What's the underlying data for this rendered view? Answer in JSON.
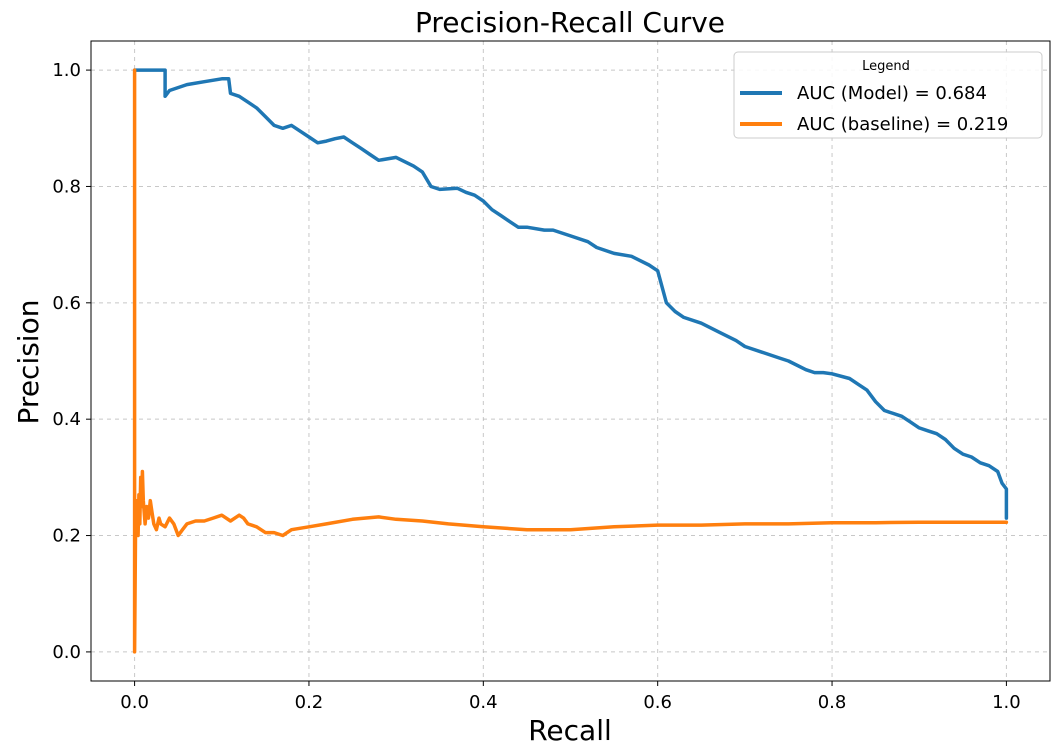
{
  "chart_data": {
    "type": "line",
    "title": "Precision-Recall Curve",
    "xlabel": "Recall",
    "ylabel": "Precision",
    "xlim": [
      -0.05,
      1.05
    ],
    "ylim": [
      -0.05,
      1.05
    ],
    "xticks": [
      0.0,
      0.2,
      0.4,
      0.6,
      0.8,
      1.0
    ],
    "yticks": [
      0.0,
      0.2,
      0.4,
      0.6,
      0.8,
      1.0
    ],
    "xtick_labels": [
      "0.0",
      "0.2",
      "0.4",
      "0.6",
      "0.8",
      "1.0"
    ],
    "ytick_labels": [
      "0.0",
      "0.2",
      "0.4",
      "0.6",
      "0.8",
      "1.0"
    ],
    "grid": true,
    "legend": {
      "title": "Legend",
      "placement": "top-right"
    },
    "series": [
      {
        "name": "AUC (Model) = 0.684",
        "color": "#1f77b4",
        "x": [
          0.0,
          0.0,
          0.035,
          0.035,
          0.04,
          0.06,
          0.08,
          0.1,
          0.108,
          0.11,
          0.12,
          0.13,
          0.14,
          0.15,
          0.16,
          0.17,
          0.18,
          0.19,
          0.2,
          0.21,
          0.22,
          0.23,
          0.24,
          0.25,
          0.26,
          0.27,
          0.28,
          0.3,
          0.32,
          0.33,
          0.34,
          0.35,
          0.37,
          0.38,
          0.39,
          0.4,
          0.41,
          0.42,
          0.43,
          0.44,
          0.45,
          0.47,
          0.48,
          0.5,
          0.52,
          0.53,
          0.55,
          0.57,
          0.59,
          0.6,
          0.61,
          0.62,
          0.63,
          0.65,
          0.67,
          0.69,
          0.7,
          0.72,
          0.74,
          0.75,
          0.77,
          0.78,
          0.79,
          0.8,
          0.82,
          0.83,
          0.84,
          0.85,
          0.86,
          0.87,
          0.88,
          0.89,
          0.9,
          0.91,
          0.92,
          0.93,
          0.94,
          0.95,
          0.96,
          0.97,
          0.98,
          0.99,
          0.995,
          1.0,
          1.0
        ],
        "y": [
          1.0,
          1.0,
          1.0,
          0.955,
          0.965,
          0.975,
          0.98,
          0.985,
          0.985,
          0.96,
          0.955,
          0.945,
          0.935,
          0.92,
          0.905,
          0.9,
          0.905,
          0.895,
          0.885,
          0.875,
          0.878,
          0.882,
          0.885,
          0.875,
          0.865,
          0.855,
          0.845,
          0.85,
          0.835,
          0.825,
          0.8,
          0.795,
          0.797,
          0.79,
          0.785,
          0.775,
          0.76,
          0.75,
          0.74,
          0.73,
          0.73,
          0.725,
          0.725,
          0.715,
          0.705,
          0.695,
          0.685,
          0.68,
          0.665,
          0.655,
          0.6,
          0.585,
          0.575,
          0.565,
          0.55,
          0.535,
          0.525,
          0.515,
          0.505,
          0.5,
          0.485,
          0.48,
          0.48,
          0.478,
          0.47,
          0.46,
          0.45,
          0.43,
          0.415,
          0.41,
          0.405,
          0.395,
          0.385,
          0.38,
          0.375,
          0.365,
          0.35,
          0.34,
          0.335,
          0.325,
          0.32,
          0.31,
          0.29,
          0.28,
          0.23
        ]
      },
      {
        "name": "AUC (baseline) = 0.219",
        "color": "#ff7f0e",
        "x": [
          0.0,
          0.0,
          0.0,
          0.001,
          0.002,
          0.003,
          0.004,
          0.005,
          0.006,
          0.007,
          0.008,
          0.009,
          0.01,
          0.012,
          0.014,
          0.016,
          0.018,
          0.02,
          0.022,
          0.025,
          0.028,
          0.03,
          0.035,
          0.04,
          0.045,
          0.05,
          0.055,
          0.06,
          0.07,
          0.08,
          0.09,
          0.1,
          0.11,
          0.12,
          0.125,
          0.13,
          0.14,
          0.15,
          0.16,
          0.17,
          0.18,
          0.2,
          0.22,
          0.25,
          0.28,
          0.3,
          0.33,
          0.36,
          0.4,
          0.45,
          0.5,
          0.55,
          0.6,
          0.65,
          0.7,
          0.75,
          0.8,
          0.85,
          0.9,
          0.95,
          1.0
        ],
        "y": [
          1.0,
          0.5,
          0.0,
          0.2,
          0.26,
          0.23,
          0.2,
          0.27,
          0.22,
          0.3,
          0.25,
          0.31,
          0.26,
          0.22,
          0.25,
          0.23,
          0.26,
          0.24,
          0.22,
          0.21,
          0.23,
          0.22,
          0.215,
          0.23,
          0.22,
          0.2,
          0.21,
          0.22,
          0.225,
          0.225,
          0.23,
          0.235,
          0.225,
          0.235,
          0.23,
          0.22,
          0.215,
          0.205,
          0.205,
          0.2,
          0.21,
          0.215,
          0.22,
          0.228,
          0.232,
          0.228,
          0.225,
          0.22,
          0.215,
          0.21,
          0.21,
          0.215,
          0.218,
          0.218,
          0.22,
          0.22,
          0.222,
          0.222,
          0.223,
          0.223,
          0.223
        ]
      }
    ]
  }
}
